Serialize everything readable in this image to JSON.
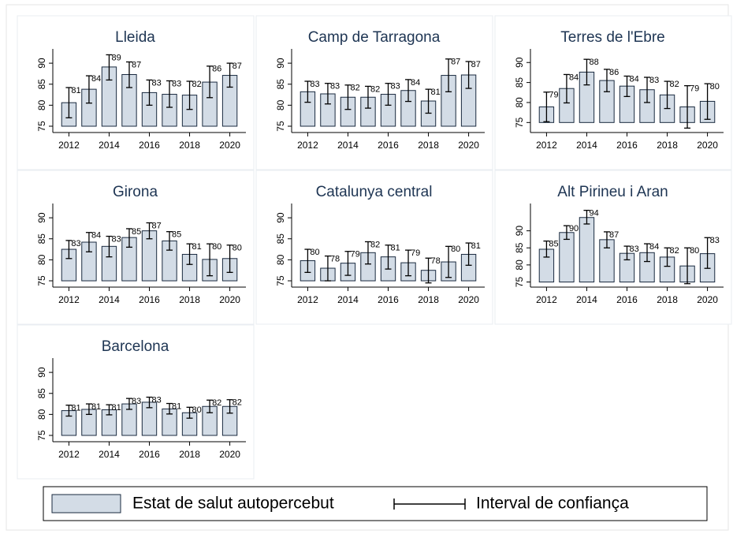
{
  "chart_data": [
    {
      "type": "bar",
      "title": "Lleida",
      "x": [
        2012,
        2013,
        2014,
        2015,
        2016,
        2017,
        2018,
        2019,
        2020
      ],
      "values": [
        80.6,
        83.8,
        89.1,
        87.3,
        83.0,
        82.6,
        82.4,
        85.5,
        87.1
      ],
      "value_labels": [
        "81",
        "84",
        "89",
        "87",
        "83",
        "83",
        "82",
        "86",
        "87"
      ],
      "ci_low": [
        77,
        80.5,
        86,
        84.2,
        80,
        79.5,
        79,
        81.8,
        84.3
      ],
      "ci_high": [
        84.2,
        87,
        92,
        90.3,
        86,
        85.8,
        85.7,
        89.3,
        90
      ],
      "xlim": [
        2011.2,
        2020.8
      ],
      "xticks": [
        2012,
        2014,
        2016,
        2018,
        2020
      ],
      "ylim": [
        73.5,
        93.4
      ],
      "yticks": [
        75,
        80,
        85,
        90
      ],
      "color": "#d3dce6"
    },
    {
      "type": "bar",
      "title": "Camp de Tarragona",
      "x": [
        2012,
        2013,
        2014,
        2015,
        2016,
        2017,
        2018,
        2019,
        2020
      ],
      "values": [
        83.2,
        82.7,
        81.9,
        81.9,
        82.6,
        83.5,
        81.0,
        87.1,
        87.2
      ],
      "value_labels": [
        "83",
        "83",
        "82",
        "82",
        "83",
        "84",
        "81",
        "87",
        "87"
      ],
      "ci_low": [
        80.7,
        80.3,
        79,
        79.3,
        80,
        80.9,
        78.1,
        83.2,
        84
      ],
      "ci_high": [
        85.7,
        85.2,
        84.8,
        84.5,
        85.2,
        86.1,
        83.8,
        91,
        90.4
      ],
      "xlim": [
        2011.2,
        2020.8
      ],
      "xticks": [
        2012,
        2014,
        2016,
        2018,
        2020
      ],
      "ylim": [
        73.5,
        93.4
      ],
      "yticks": [
        75,
        80,
        85,
        90
      ],
      "color": "#d3dce6"
    },
    {
      "type": "bar",
      "title": "Terres de l'Ebre",
      "x": [
        2012,
        2013,
        2014,
        2015,
        2016,
        2017,
        2018,
        2019,
        2020
      ],
      "values": [
        78.9,
        83.5,
        87.6,
        85.5,
        84.1,
        83.2,
        81.9,
        78.9,
        80.3
      ],
      "value_labels": [
        "79",
        "84",
        "88",
        "86",
        "84",
        "83",
        "82",
        "79",
        "80"
      ],
      "ci_low": [
        75.2,
        79.9,
        84.4,
        82.7,
        81.5,
        80,
        78.5,
        73.6,
        75.8
      ],
      "ci_high": [
        82.6,
        87,
        90.8,
        88.3,
        86.6,
        86.3,
        85.3,
        84.2,
        84.7
      ],
      "xlim": [
        2011.2,
        2020.8
      ],
      "xticks": [
        2012,
        2014,
        2016,
        2018,
        2020
      ],
      "ylim": [
        72.5,
        93.4
      ],
      "yticks": [
        75,
        80,
        85,
        90
      ],
      "color": "#d3dce6"
    },
    {
      "type": "bar",
      "title": "Girona",
      "x": [
        2012,
        2013,
        2014,
        2015,
        2016,
        2017,
        2018,
        2019,
        2020
      ],
      "values": [
        82.5,
        84.2,
        83.2,
        85.3,
        86.9,
        84.5,
        81.3,
        80.1,
        80.3
      ],
      "value_labels": [
        "83",
        "84",
        "83",
        "85",
        "87",
        "85",
        "81",
        "80",
        "80"
      ],
      "ci_low": [
        80.3,
        81.9,
        80.7,
        83,
        85,
        82.3,
        78.9,
        76.2,
        77
      ],
      "ci_high": [
        84.6,
        86.5,
        85.6,
        87.4,
        88.8,
        86.7,
        83.8,
        83.8,
        83.5
      ],
      "xlim": [
        2011.2,
        2020.8
      ],
      "xticks": [
        2012,
        2014,
        2016,
        2018,
        2020
      ],
      "ylim": [
        73.5,
        93.4
      ],
      "yticks": [
        75,
        80,
        85,
        90
      ],
      "color": "#d3dce6"
    },
    {
      "type": "bar",
      "title": "Catalunya central",
      "x": [
        2012,
        2013,
        2014,
        2015,
        2016,
        2017,
        2018,
        2019,
        2020
      ],
      "values": [
        79.8,
        78.0,
        79.2,
        81.7,
        80.7,
        79.3,
        77.5,
        79.5,
        81.3
      ],
      "value_labels": [
        "80",
        "78",
        "79",
        "82",
        "81",
        "79",
        "78",
        "80",
        "81"
      ],
      "ci_low": [
        77,
        75,
        76.3,
        79,
        77.8,
        76.2,
        74.5,
        75.8,
        78.7
      ],
      "ci_high": [
        82.5,
        80.9,
        82,
        84.3,
        83.5,
        82.3,
        80.4,
        83.2,
        84
      ],
      "xlim": [
        2011.2,
        2020.8
      ],
      "xticks": [
        2012,
        2014,
        2016,
        2018,
        2020
      ],
      "ylim": [
        73.5,
        93.4
      ],
      "yticks": [
        75,
        80,
        85,
        90
      ],
      "color": "#d3dce6"
    },
    {
      "type": "bar",
      "title": "Alt Pirineu i Aran",
      "x": [
        2012,
        2013,
        2014,
        2015,
        2016,
        2017,
        2018,
        2019,
        2020
      ],
      "values": [
        84.6,
        89.5,
        93.9,
        87.4,
        83.4,
        83.6,
        82.3,
        79.7,
        83.3
      ],
      "value_labels": [
        "85",
        "90",
        "94",
        "87",
        "83",
        "84",
        "82",
        "80",
        "83"
      ],
      "ci_low": [
        82.3,
        87.5,
        92,
        85,
        81.5,
        81,
        79.6,
        74.5,
        79
      ],
      "ci_high": [
        87,
        91.5,
        96,
        89.7,
        85.5,
        86.2,
        85,
        85,
        88
      ],
      "xlim": [
        2011.2,
        2020.8
      ],
      "xticks": [
        2012,
        2014,
        2016,
        2018,
        2020
      ],
      "ylim": [
        73.5,
        98
      ],
      "yticks": [
        75,
        80,
        85,
        90
      ],
      "color": "#d3dce6"
    },
    {
      "type": "bar",
      "title": "Barcelona",
      "x": [
        2012,
        2013,
        2014,
        2015,
        2016,
        2017,
        2018,
        2019,
        2020
      ],
      "values": [
        80.9,
        81.2,
        81.1,
        82.5,
        82.9,
        81.3,
        80.4,
        81.9,
        81.9
      ],
      "value_labels": [
        "81",
        "81",
        "81",
        "83",
        "83",
        "81",
        "80",
        "82",
        "82"
      ],
      "ci_low": [
        79.6,
        80,
        79.9,
        81.2,
        81.6,
        80.1,
        79.1,
        80.4,
        80.3
      ],
      "ci_high": [
        82.2,
        82.5,
        82.3,
        83.8,
        84.1,
        82.6,
        81.7,
        83.4,
        83.5
      ],
      "xlim": [
        2011.2,
        2020.8
      ],
      "xticks": [
        2012,
        2014,
        2016,
        2018,
        2020
      ],
      "ylim": [
        73.5,
        93.4
      ],
      "yticks": [
        75,
        80,
        85,
        90
      ],
      "color": "#d3dce6"
    }
  ],
  "legend": {
    "items": [
      "Estat de salut autopercebut",
      "Interval de confiança"
    ]
  }
}
